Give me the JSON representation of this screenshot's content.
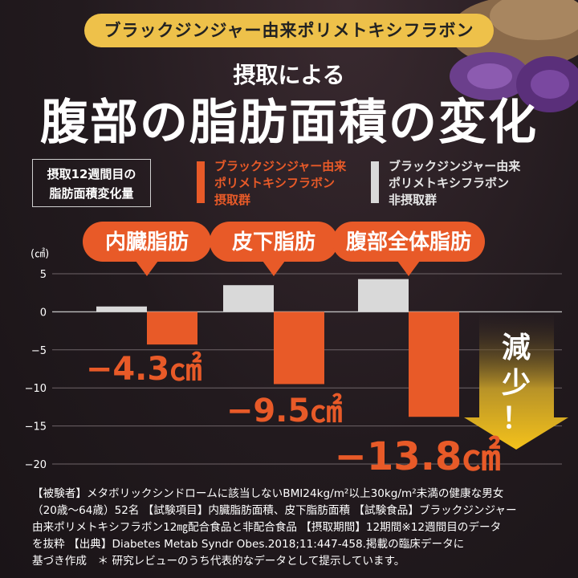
{
  "banner": "ブラックジンジャー由来ポリメトキシフラボン",
  "subtitle": "摂取による",
  "title": "腹部の脂肪面積の変化",
  "info_box": [
    "摂取12週間目の",
    "脂肪面積変化量"
  ],
  "legend": {
    "intake": [
      "ブラックジンジャー由来",
      "ポリメトキシフラボン",
      "摂取群"
    ],
    "non_intake": [
      "ブラックジンジャー由来",
      "ポリメトキシフラボン",
      "非摂取群"
    ]
  },
  "colors": {
    "intake": "#e85a28",
    "non_intake": "#d9d9d9",
    "callout": "#e85a28",
    "arrow": "#f4c21b"
  },
  "reduction_label": "減少！",
  "footnote": [
    "【被験者】メタボリックシンドロームに該当しないBMI24kg/m²以上30kg/m²未満の健康な男女",
    "（20歳〜64歳）52名 【試験項目】内臓脂肪面積、皮下脂肪面積 【試験食品】ブラックジンジャー",
    "由来ポリメトキシフラボン12㎎配合食品と非配合食品 【摂取期間】12期間※12週間目のデータ",
    "を抜粋 【出典】Diabetes Metab Syndr Obes.2018;11:447-458.掲載の臨床データに",
    "基づき作成　＊ 研究レビューのうち代表的なデータとして提示しています。"
  ],
  "chart_data": {
    "type": "bar",
    "unit": "(㎠)",
    "ylim": [
      -20,
      5
    ],
    "yticks": [
      5,
      0,
      -5,
      -10,
      -15,
      -20
    ],
    "yticklabels": [
      "5",
      "0",
      "−5",
      "−10",
      "−15",
      "−20"
    ],
    "grid": true,
    "categories": [
      "内臓脂肪",
      "皮下脂肪",
      "腹部全体脂肪"
    ],
    "series": [
      {
        "key": "non_intake",
        "values": [
          0.7,
          3.5,
          4.3
        ]
      },
      {
        "key": "intake",
        "values": [
          -4.3,
          -9.5,
          -13.8
        ]
      }
    ],
    "data_labels": [
      "−4.3㎠",
      "−9.5㎠",
      "−13.8㎠"
    ]
  }
}
